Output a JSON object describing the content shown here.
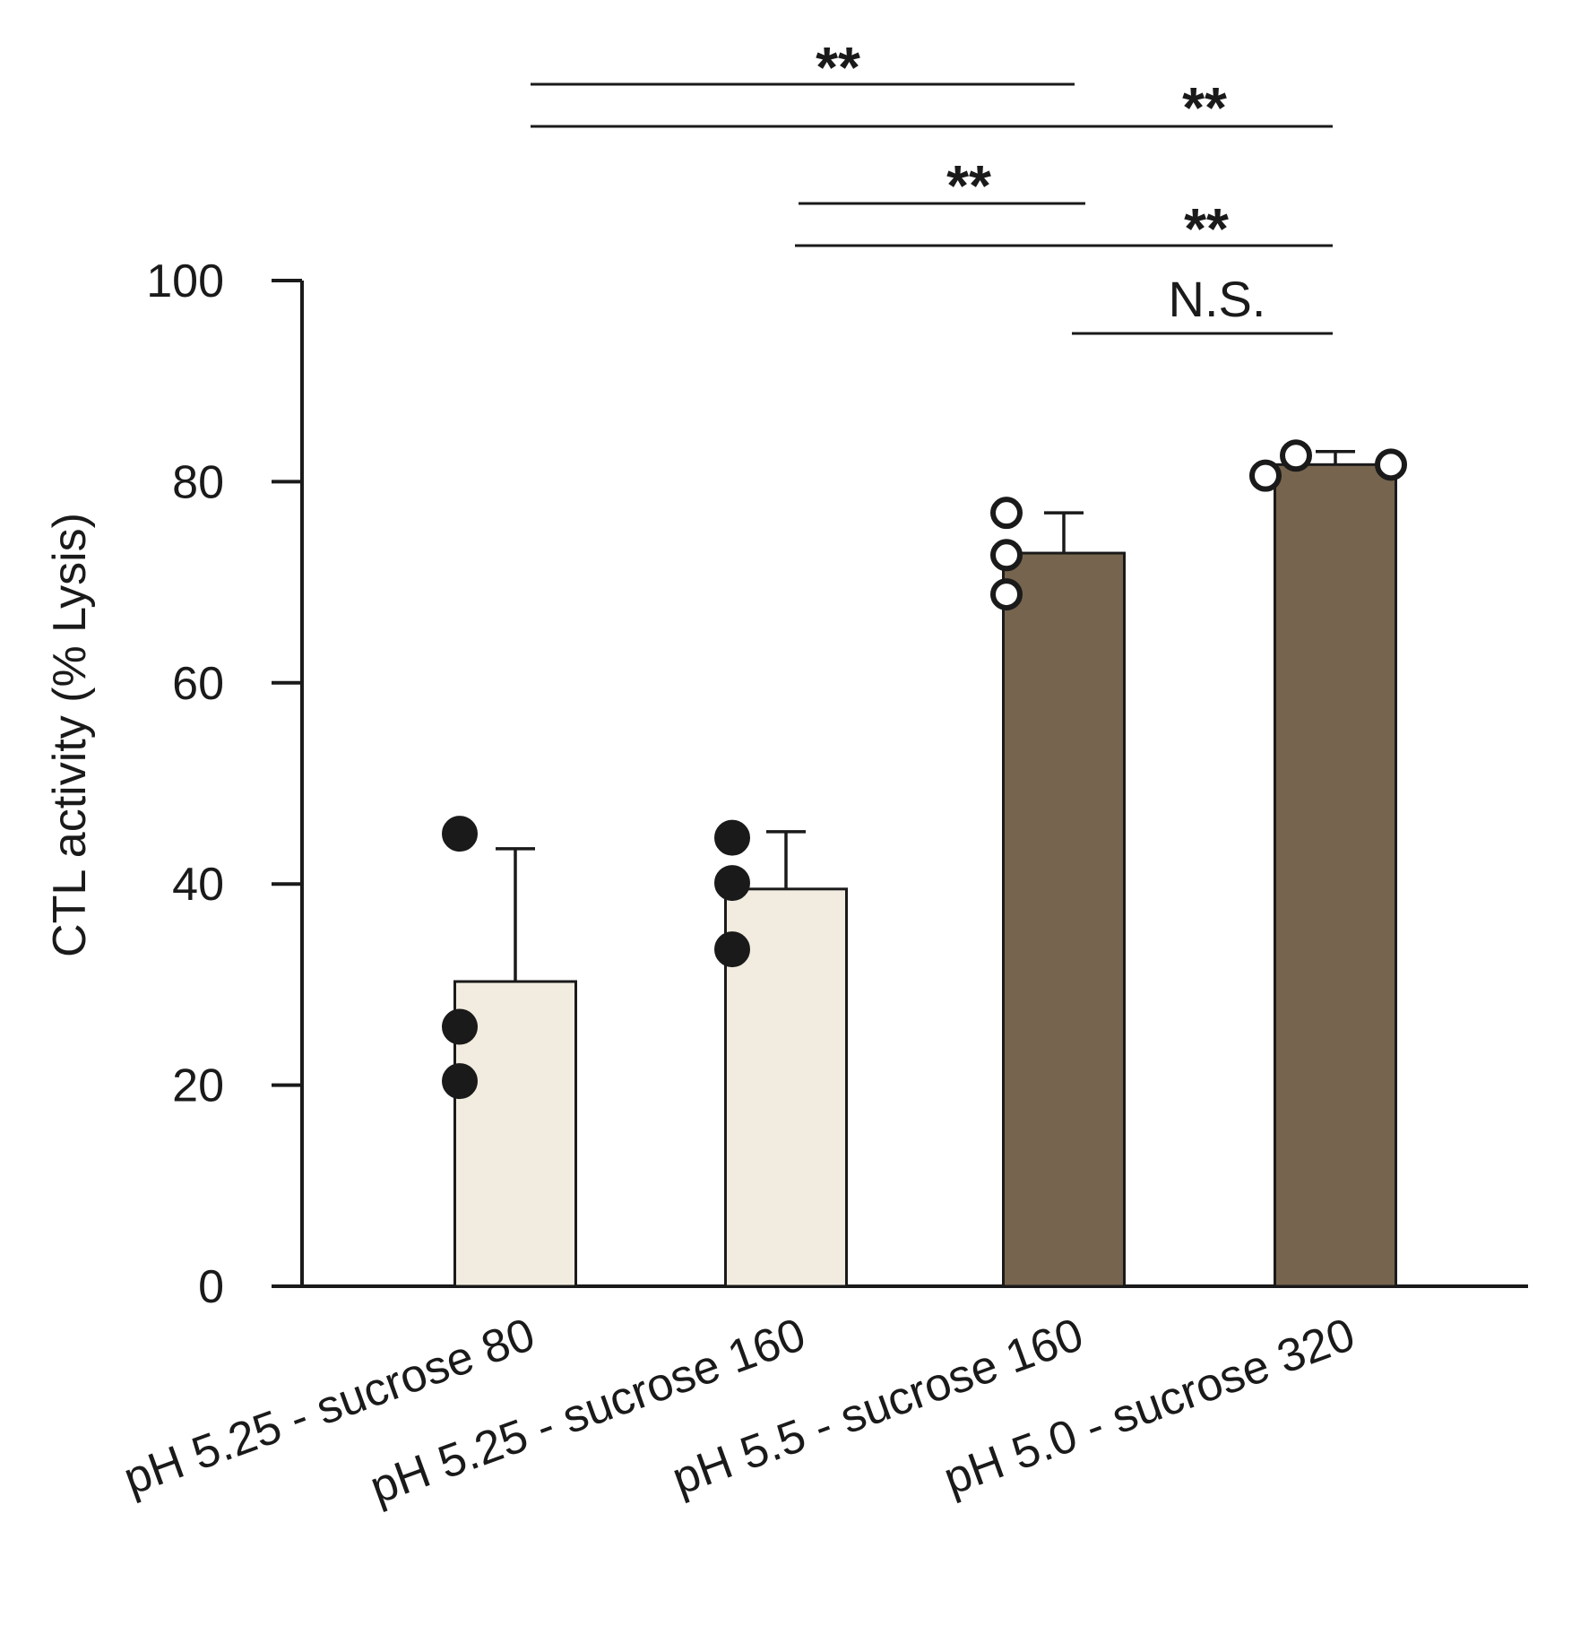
{
  "chart_data": {
    "type": "bar",
    "ylabel": "CTL activity (% Lysis)",
    "xlabel": "",
    "ylim": [
      0,
      100
    ],
    "yticks": [
      0,
      20,
      40,
      60,
      80,
      100
    ],
    "categories": [
      "pH 5.25 - sucrose 80",
      "pH 5.25 - sucrose 160",
      "pH 5.5 - sucrose 160",
      "pH 5.0 - sucrose 320"
    ],
    "values": [
      30.3,
      39.5,
      72.9,
      81.7
    ],
    "errors": [
      13.2,
      5.7,
      4.0,
      1.3
    ],
    "bar_colors": [
      "#f2ece0",
      "#f2ece0",
      "#76644e",
      "#76644e"
    ],
    "points": [
      {
        "values": [
          45.0,
          25.8,
          20.4
        ],
        "style": "filled"
      },
      {
        "values": [
          44.6,
          40.1,
          33.5
        ],
        "style": "filled"
      },
      {
        "values": [
          76.9,
          72.7,
          68.8
        ],
        "style": "open"
      },
      {
        "values": [
          80.6,
          82.6,
          81.7
        ],
        "style": "open"
      }
    ],
    "significance": [
      {
        "from": 0,
        "to": 2,
        "label": "**"
      },
      {
        "from": 0,
        "to": 3,
        "label": "**"
      },
      {
        "from": 1,
        "to": 2,
        "label": "**"
      },
      {
        "from": 1,
        "to": 3,
        "label": "**"
      },
      {
        "from": 2,
        "to": 3,
        "label": "N.S."
      }
    ]
  }
}
